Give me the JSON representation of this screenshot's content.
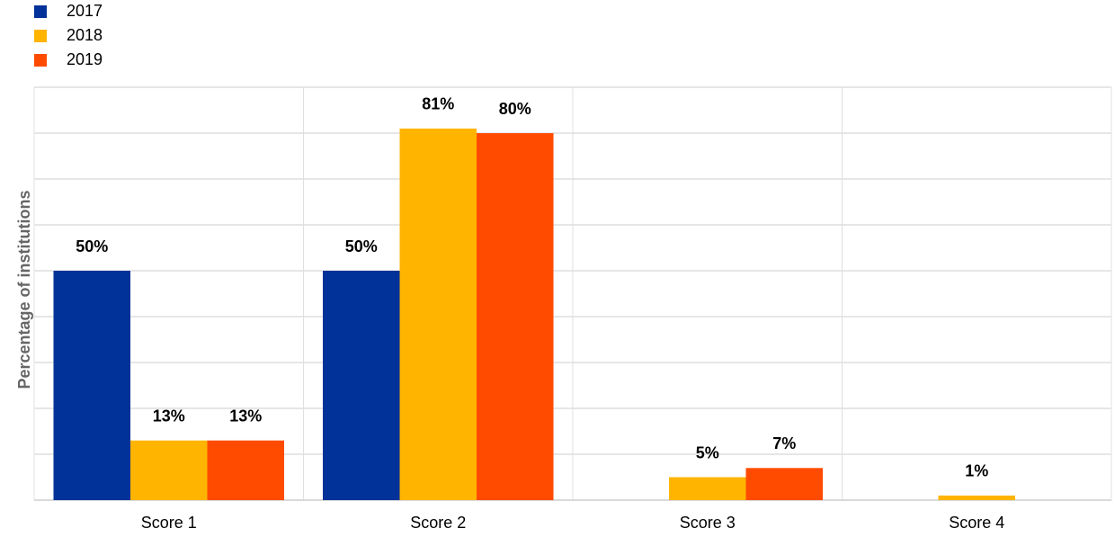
{
  "chart_data": {
    "type": "bar",
    "y_label": "Percentage of institutions",
    "categories": [
      "Score 1",
      "Score 2",
      "Score 3",
      "Score 4"
    ],
    "series": [
      {
        "name": "2017",
        "color": "#003299",
        "values": [
          50,
          50,
          null,
          null
        ],
        "value_labels": [
          "50%",
          "50%",
          null,
          null
        ]
      },
      {
        "name": "2018",
        "color": "#ffb400",
        "values": [
          13,
          81,
          5,
          1
        ],
        "value_labels": [
          "13%",
          "81%",
          "5%",
          "1%"
        ]
      },
      {
        "name": "2019",
        "color": "#ff4b00",
        "values": [
          13,
          80,
          7,
          null
        ],
        "value_labels": [
          "13%",
          "80%",
          "7%",
          null
        ]
      }
    ],
    "ylim": [
      0,
      90
    ],
    "yticks": [
      0,
      10,
      20,
      30,
      40,
      50,
      60,
      70,
      80,
      90
    ],
    "grid": true,
    "legend": "top-left"
  }
}
